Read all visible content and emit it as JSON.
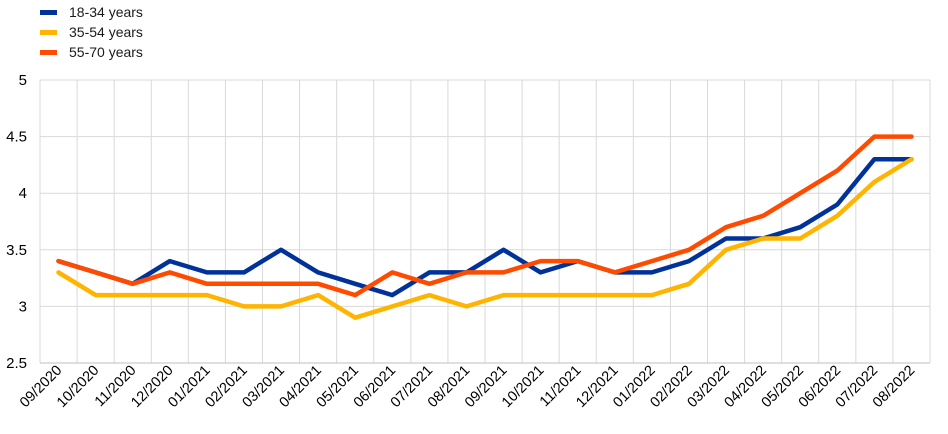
{
  "chart_data": {
    "type": "line",
    "title": "",
    "xlabel": "",
    "ylabel": "",
    "ylim": [
      2.5,
      5
    ],
    "yticks": [
      "2.5",
      "3",
      "3.5",
      "4",
      "4.5",
      "5"
    ],
    "grid": true,
    "legend_position": "top-left",
    "categories": [
      "09/2020",
      "10/2020",
      "11/2020",
      "12/2020",
      "01/2021",
      "02/2021",
      "03/2021",
      "04/2021",
      "05/2021",
      "06/2021",
      "07/2021",
      "08/2021",
      "09/2021",
      "10/2021",
      "11/2021",
      "12/2021",
      "01/2022",
      "02/2022",
      "03/2022",
      "04/2022",
      "05/2022",
      "06/2022",
      "07/2022",
      "08/2022"
    ],
    "series": [
      {
        "name": "18-34 years",
        "color": "#003299",
        "values": [
          3.4,
          3.3,
          3.2,
          3.4,
          3.3,
          3.3,
          3.5,
          3.3,
          3.2,
          3.1,
          3.3,
          3.3,
          3.5,
          3.3,
          3.4,
          3.3,
          3.3,
          3.4,
          3.6,
          3.6,
          3.7,
          3.9,
          4.3,
          4.3
        ]
      },
      {
        "name": "35-54 years",
        "color": "#FFB400",
        "values": [
          3.3,
          3.1,
          3.1,
          3.1,
          3.1,
          3.0,
          3.0,
          3.1,
          2.9,
          3.0,
          3.1,
          3.0,
          3.1,
          3.1,
          3.1,
          3.1,
          3.1,
          3.2,
          3.5,
          3.6,
          3.6,
          3.8,
          4.1,
          4.3
        ]
      },
      {
        "name": "55-70 years",
        "color": "#FF4B00",
        "values": [
          3.4,
          3.3,
          3.2,
          3.3,
          3.2,
          3.2,
          3.2,
          3.2,
          3.1,
          3.3,
          3.2,
          3.3,
          3.3,
          3.4,
          3.4,
          3.3,
          3.4,
          3.5,
          3.7,
          3.8,
          4.0,
          4.2,
          4.5,
          4.5
        ]
      }
    ]
  }
}
